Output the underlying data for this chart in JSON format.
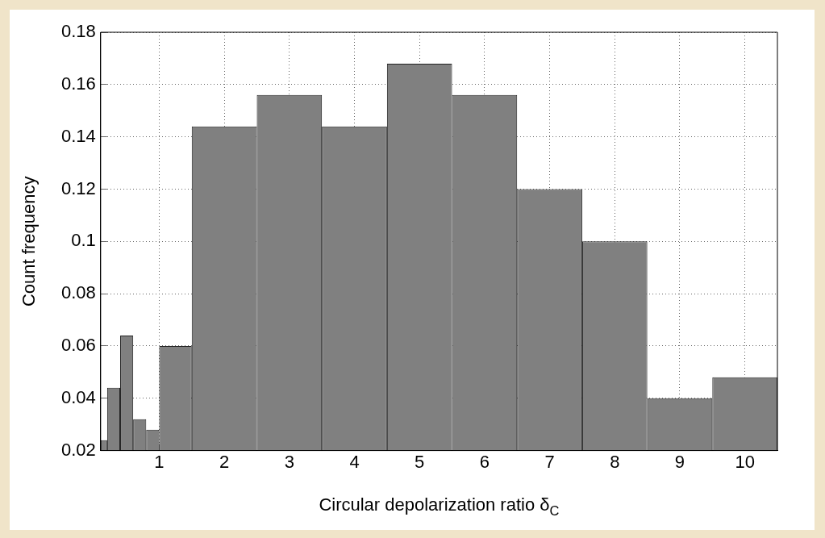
{
  "chart_data": {
    "type": "histogram",
    "xlabel": "Circular depolarization ratio δ$_{C}$",
    "ylabel": "Count frequency",
    "bins": [
      0.1,
      0.2,
      0.4,
      0.6,
      0.8,
      1.0,
      1.5,
      2.5,
      3.5,
      4.5,
      5.5,
      6.5,
      7.5,
      8.5,
      9.5,
      10.5
    ],
    "values": [
      0.024,
      0.044,
      0.064,
      0.032,
      0.028,
      0.06,
      0.144,
      0.156,
      0.144,
      0.168,
      0.156,
      0.12,
      0.1,
      0.04,
      0.048
    ],
    "color": "#808080",
    "xlim": [
      0.1,
      10.5
    ],
    "xticks": [
      1,
      2,
      3,
      4,
      5,
      6,
      7,
      8,
      9,
      10
    ],
    "ylim": [
      0.02,
      0.18
    ],
    "yticks": [
      0.02,
      0.04,
      0.06,
      0.08,
      0.1,
      0.12,
      0.14,
      0.16,
      0.18
    ],
    "grid": true
  }
}
